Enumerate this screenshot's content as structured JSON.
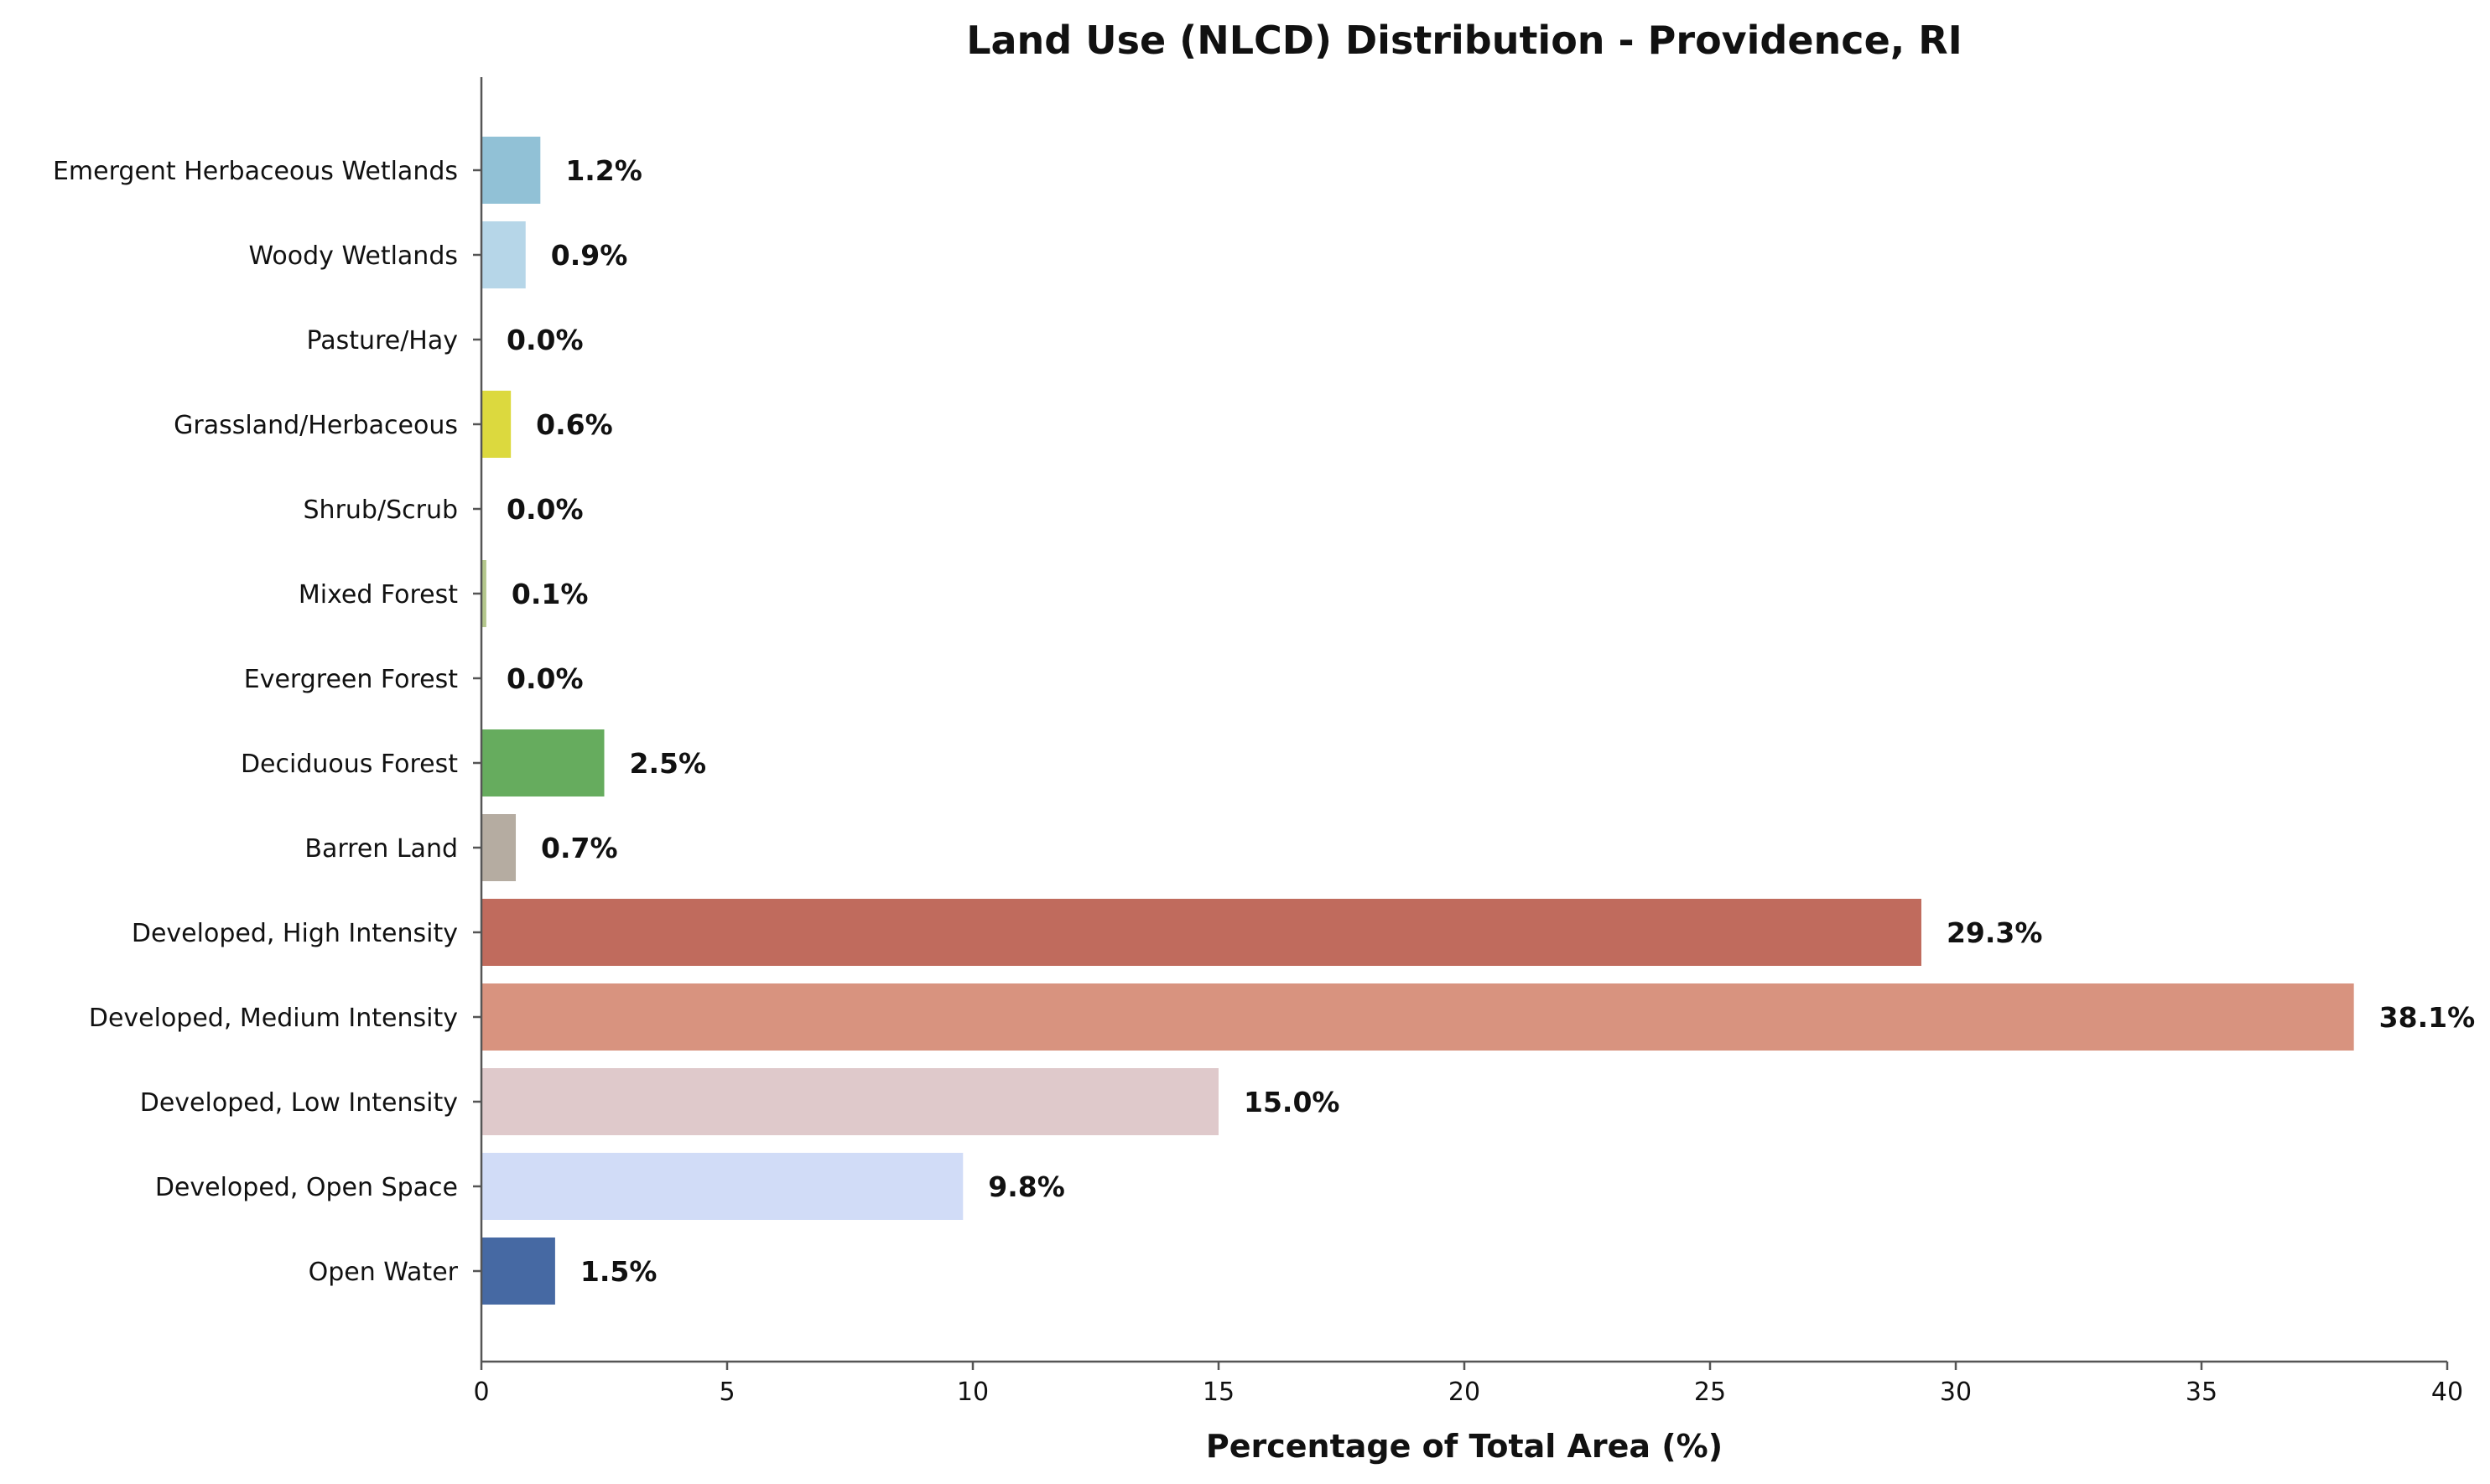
{
  "chart_data": {
    "type": "bar",
    "orientation": "horizontal",
    "title": "Land Use (NLCD) Distribution - Providence, RI",
    "xlabel": "Percentage of Total Area (%)",
    "ylabel": "",
    "xlim": [
      0,
      40
    ],
    "xticks": [
      0,
      5,
      10,
      15,
      20,
      25,
      30,
      35,
      40
    ],
    "grid": false,
    "legend": "none",
    "categories": [
      "Open Water",
      "Developed, Open Space",
      "Developed, Low Intensity",
      "Developed, Medium Intensity",
      "Developed, High Intensity",
      "Barren Land",
      "Deciduous Forest",
      "Evergreen Forest",
      "Mixed Forest",
      "Shrub/Scrub",
      "Grassland/Herbaceous",
      "Pasture/Hay",
      "Woody Wetlands",
      "Emergent Herbaceous Wetlands"
    ],
    "values": [
      1.5,
      9.8,
      15.0,
      38.1,
      29.3,
      0.7,
      2.5,
      0.0,
      0.1,
      0.0,
      0.6,
      0.0,
      0.9,
      1.2
    ],
    "value_labels": [
      "1.5%",
      "9.8%",
      "15.0%",
      "38.1%",
      "29.3%",
      "0.7%",
      "2.5%",
      "0.0%",
      "0.1%",
      "0.0%",
      "0.6%",
      "0.0%",
      "0.9%",
      "1.2%"
    ],
    "colors": [
      "#4669a3",
      "#d1dcf7",
      "#dfc9cb",
      "#d8937f",
      "#c06b5d",
      "#b5aca1",
      "#66ac5e",
      "#1e6b34",
      "#b3c68b",
      "#c9b286",
      "#dcd93e",
      "#ccc56b",
      "#b6d6e8",
      "#91c1d6"
    ]
  }
}
